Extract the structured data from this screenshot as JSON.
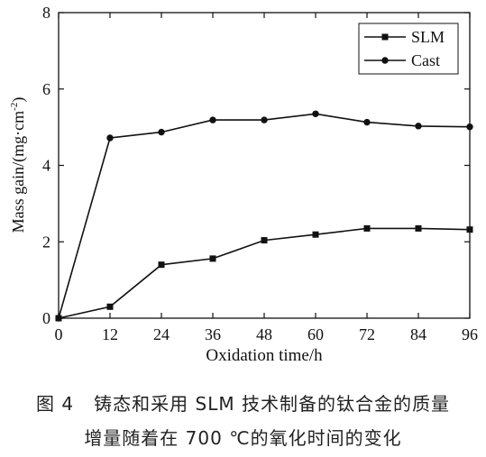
{
  "chart_data": {
    "type": "line",
    "xlabel": "Oxidation time/h",
    "ylabel_main": "Mass gain/(mg·cm",
    "ylabel_sup": "-2",
    "ylabel_end": ")",
    "xlim": [
      0,
      96
    ],
    "ylim": [
      0,
      8
    ],
    "xticks": [
      0,
      12,
      24,
      36,
      48,
      60,
      72,
      84,
      96
    ],
    "yticks": [
      0,
      2,
      4,
      6,
      8
    ],
    "grid": false,
    "legend_position": "top-right",
    "x": [
      0,
      12,
      24,
      36,
      48,
      60,
      72,
      84,
      96
    ],
    "series": [
      {
        "name": "SLM",
        "marker": "square",
        "values": [
          0,
          0.3,
          1.4,
          1.56,
          2.04,
          2.19,
          2.35,
          2.35,
          2.32
        ]
      },
      {
        "name": "Cast",
        "marker": "circle",
        "values": [
          0,
          4.72,
          4.87,
          5.19,
          5.19,
          5.35,
          5.13,
          5.03,
          5.01
        ]
      }
    ]
  },
  "caption": {
    "line1": "图 4   铸态和采用 SLM 技术制备的钛合金的质量",
    "line2": "增量随着在 700 ℃的氧化时间的变化"
  }
}
